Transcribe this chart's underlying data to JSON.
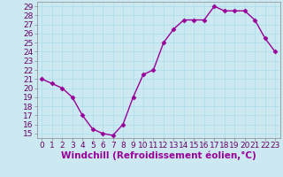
{
  "x": [
    0,
    1,
    2,
    3,
    4,
    5,
    6,
    7,
    8,
    9,
    10,
    11,
    12,
    13,
    14,
    15,
    16,
    17,
    18,
    19,
    20,
    21,
    22,
    23
  ],
  "y": [
    21,
    20.5,
    20,
    19,
    17,
    15.5,
    15,
    14.8,
    16,
    19,
    21.5,
    22,
    25,
    26.5,
    27.5,
    27.5,
    27.5,
    29,
    28.5,
    28.5,
    28.5,
    27.5,
    25.5,
    24
  ],
  "line_color": "#990099",
  "marker": "D",
  "marker_size": 2.5,
  "bg_color": "#cce8f0",
  "grid_color": "#aaddee",
  "xlabel": "Windchill (Refroidissement éolien,°C)",
  "ylim": [
    14.5,
    29.5
  ],
  "xlim": [
    -0.5,
    23.5
  ],
  "yticks": [
    15,
    16,
    17,
    18,
    19,
    20,
    21,
    22,
    23,
    24,
    25,
    26,
    27,
    28,
    29
  ],
  "xtick_labels": [
    "0",
    "1",
    "2",
    "3",
    "4",
    "5",
    "6",
    "7",
    "8",
    "9",
    "10",
    "11",
    "12",
    "13",
    "14",
    "15",
    "16",
    "17",
    "18",
    "19",
    "20",
    "21",
    "22",
    "23"
  ],
  "xlabel_fontsize": 7.5,
  "tick_fontsize": 6.5,
  "line_width": 1.0
}
